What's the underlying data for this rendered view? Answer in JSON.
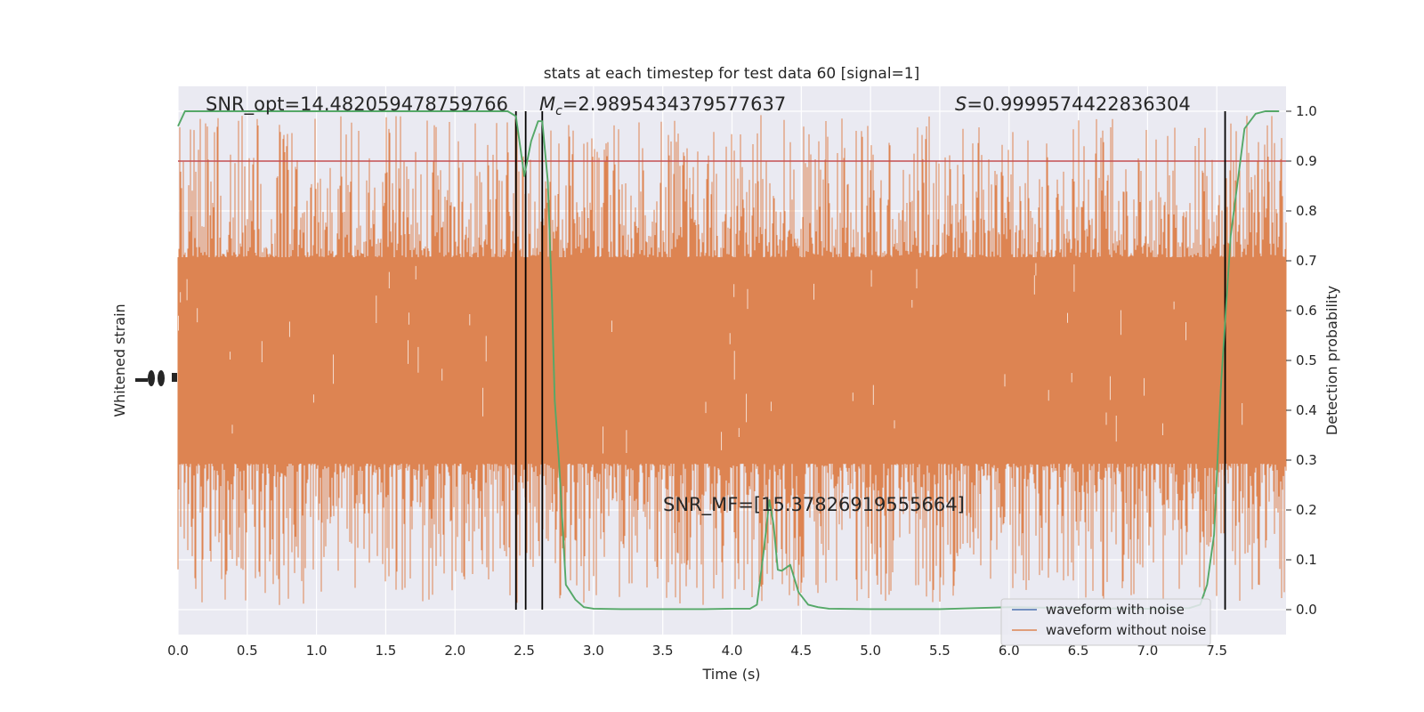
{
  "chart_data": {
    "type": "line",
    "title": "stats at each timestep for test data 60 [signal=1]",
    "xlabel": "Time (s)",
    "ylabel_left": "Whitened strain",
    "ylabel_right": "Detection probability",
    "xlim": [
      0.0,
      8.0
    ],
    "ylim_right": [
      -0.05,
      1.05
    ],
    "x_ticks": [
      "0.0",
      "0.5",
      "1.0",
      "1.5",
      "2.0",
      "2.5",
      "3.0",
      "3.5",
      "4.0",
      "4.5",
      "5.0",
      "5.5",
      "6.0",
      "6.5",
      "7.0",
      "7.5"
    ],
    "y_ticks_right": [
      "0.0",
      "0.1",
      "0.2",
      "0.3",
      "0.4",
      "0.5",
      "0.6",
      "0.7",
      "0.8",
      "0.9",
      "1.0"
    ],
    "grid": true,
    "legend_position": "lower-right",
    "annotations": {
      "snr_opt": "SNR_opt=14.482059478759766",
      "mc_symbol": "M",
      "mc_sub": "c",
      "mc_value": "=2.9895434379577637",
      "s_symbol": "S",
      "s_value": "=0.9999574422836304",
      "snr_mf": "SNR_MF=[15.37826919555664]"
    },
    "threshold": 0.9,
    "vertical_lines_x": [
      2.44,
      2.51,
      2.63,
      7.56
    ],
    "series": [
      {
        "name": "waveform with noise",
        "color": "#4c72b0",
        "kind": "strain"
      },
      {
        "name": "waveform without noise",
        "color": "#dd8452",
        "kind": "strain",
        "band_probability_equiv": [
          0.3,
          0.7
        ],
        "spike_range_probability_equiv": [
          0.0,
          1.0
        ]
      },
      {
        "color": "#55a868",
        "kind": "probability",
        "x": [
          0.0,
          0.05,
          0.1,
          0.2,
          0.5,
          1.0,
          1.5,
          2.0,
          2.2,
          2.38,
          2.44,
          2.5,
          2.55,
          2.6,
          2.63,
          2.67,
          2.7,
          2.72,
          2.75,
          2.8,
          2.87,
          2.93,
          3.0,
          3.2,
          3.5,
          3.8,
          4.0,
          4.13,
          4.18,
          4.23,
          4.27,
          4.3,
          4.33,
          4.36,
          4.42,
          4.48,
          4.55,
          4.62,
          4.7,
          5.0,
          5.5,
          6.0,
          6.5,
          7.0,
          7.3,
          7.38,
          7.43,
          7.48,
          7.53,
          7.6,
          7.7,
          7.78,
          7.85,
          7.95
        ],
        "y": [
          0.97,
          1.0,
          1.0,
          1.0,
          1.0,
          1.0,
          1.0,
          1.0,
          1.0,
          1.0,
          0.99,
          0.87,
          0.94,
          0.98,
          0.98,
          0.86,
          0.62,
          0.42,
          0.3,
          0.05,
          0.02,
          0.005,
          0.002,
          0.001,
          0.001,
          0.001,
          0.002,
          0.002,
          0.01,
          0.12,
          0.22,
          0.17,
          0.08,
          0.078,
          0.09,
          0.035,
          0.01,
          0.005,
          0.002,
          0.001,
          0.001,
          0.005,
          0.003,
          0.002,
          0.003,
          0.01,
          0.05,
          0.15,
          0.45,
          0.75,
          0.965,
          0.995,
          1.0,
          1.0
        ]
      }
    ]
  }
}
